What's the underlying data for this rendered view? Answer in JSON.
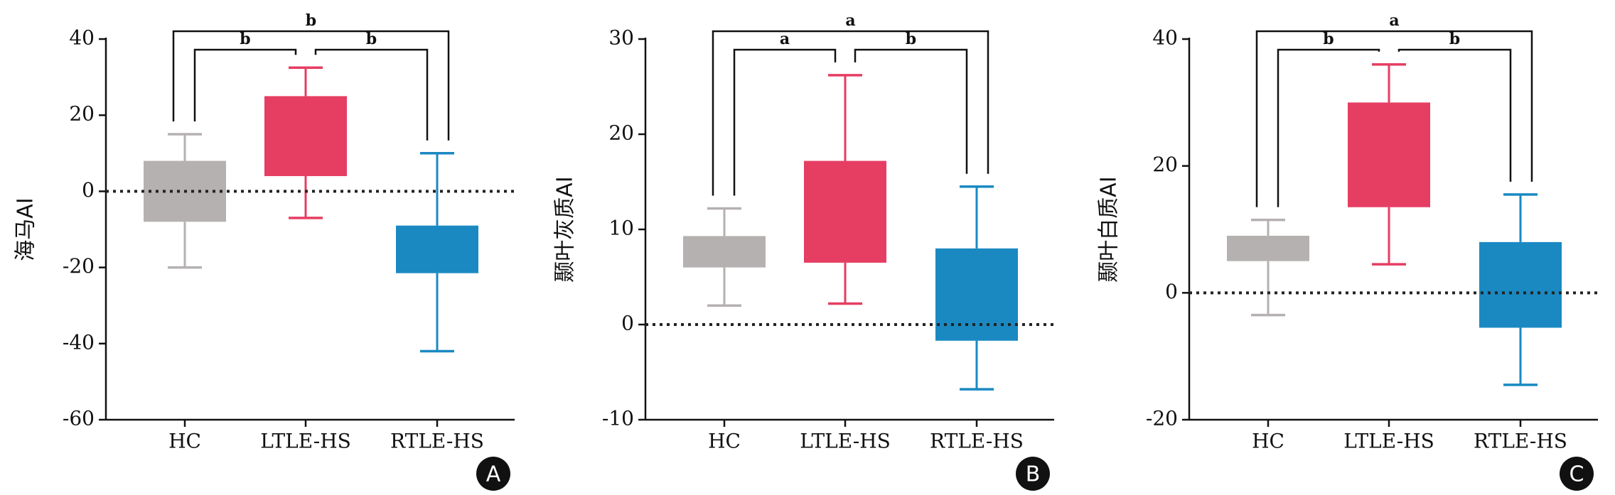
{
  "chart_data": [
    {
      "type": "box",
      "panel_label": "A",
      "y_label": "海马AI",
      "categories": [
        "HC",
        "LTLE-HS",
        "RTLE-HS"
      ],
      "colors": [
        "#b5b1b0",
        "#e63d62",
        "#1a89c2"
      ],
      "whisker_low": [
        -20,
        -7,
        -42
      ],
      "q1": [
        -8,
        4,
        -21.5
      ],
      "q3": [
        8,
        25,
        -9
      ],
      "whisker_high": [
        15,
        32.5,
        10
      ],
      "ylim": [
        -60,
        40
      ],
      "yticks": [
        -60,
        -40,
        -20,
        0,
        20,
        40
      ],
      "reference_line": 0,
      "brackets": [
        {
          "from": "HC",
          "to": "LTLE-HS",
          "label": "b"
        },
        {
          "from": "LTLE-HS",
          "to": "RTLE-HS",
          "label": "b"
        },
        {
          "from": "HC",
          "to": "RTLE-HS",
          "label": "b"
        }
      ]
    },
    {
      "type": "box",
      "panel_label": "B",
      "y_label": "颞叶灰质AI",
      "categories": [
        "HC",
        "LTLE-HS",
        "RTLE-HS"
      ],
      "colors": [
        "#b5b1b0",
        "#e63d62",
        "#1a89c2"
      ],
      "whisker_low": [
        2,
        2.2,
        -6.8
      ],
      "q1": [
        6,
        6.5,
        -1.7
      ],
      "q3": [
        9.3,
        17.2,
        8
      ],
      "whisker_high": [
        12.2,
        26.2,
        14.5
      ],
      "ylim": [
        -10,
        30
      ],
      "yticks": [
        -10,
        0,
        10,
        20,
        30
      ],
      "reference_line": 0,
      "brackets": [
        {
          "from": "HC",
          "to": "LTLE-HS",
          "label": "a"
        },
        {
          "from": "LTLE-HS",
          "to": "RTLE-HS",
          "label": "b"
        },
        {
          "from": "HC",
          "to": "RTLE-HS",
          "label": "a"
        }
      ]
    },
    {
      "type": "box",
      "panel_label": "C",
      "y_label": "颞叶白质AI",
      "categories": [
        "HC",
        "LTLE-HS",
        "RTLE-HS"
      ],
      "colors": [
        "#b5b1b0",
        "#e63d62",
        "#1a89c2"
      ],
      "whisker_low": [
        -3.5,
        4.5,
        -14.5
      ],
      "q1": [
        5,
        13.5,
        -5.5
      ],
      "q3": [
        9,
        30,
        8
      ],
      "whisker_high": [
        11.5,
        36,
        15.5
      ],
      "ylim": [
        -20,
        40
      ],
      "yticks": [
        -20,
        0,
        20,
        40
      ],
      "reference_line": 0,
      "brackets": [
        {
          "from": "HC",
          "to": "LTLE-HS",
          "label": "b"
        },
        {
          "from": "LTLE-HS",
          "to": "RTLE-HS",
          "label": "b"
        },
        {
          "from": "HC",
          "to": "RTLE-HS",
          "label": "a"
        }
      ]
    }
  ]
}
